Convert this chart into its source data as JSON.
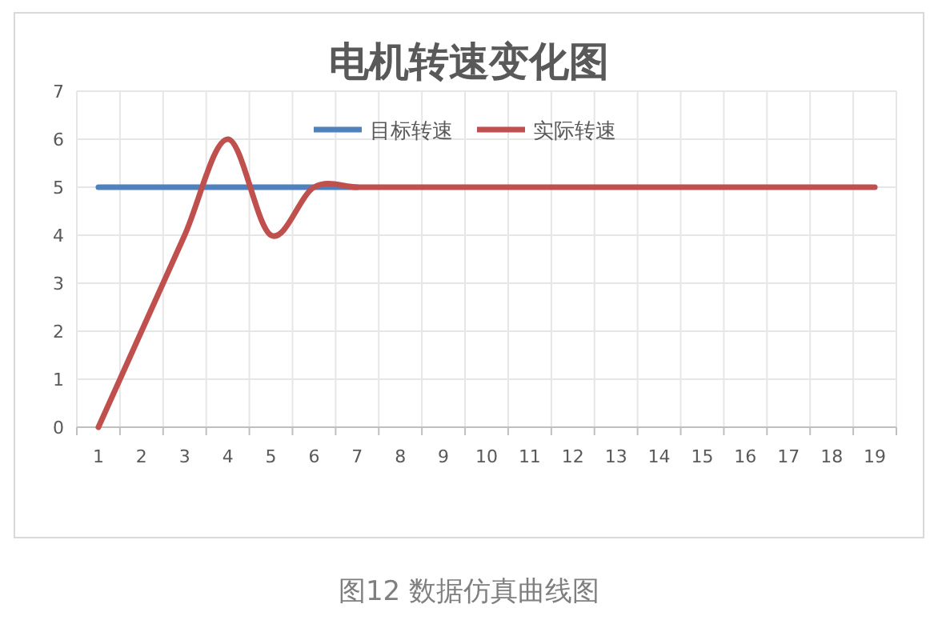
{
  "chart_data": {
    "type": "line",
    "title": "电机转速变化图",
    "categories": [
      "1",
      "2",
      "3",
      "4",
      "5",
      "6",
      "7",
      "8",
      "9",
      "10",
      "11",
      "12",
      "13",
      "14",
      "15",
      "16",
      "17",
      "18",
      "19"
    ],
    "series": [
      {
        "name": "目标转速",
        "color": "#4f81bd",
        "values": [
          5,
          5,
          5,
          5,
          5,
          5,
          5,
          null,
          null,
          null,
          null,
          null,
          null,
          null,
          null,
          null,
          null,
          null,
          null
        ]
      },
      {
        "name": "实际转速",
        "color": "#c0504d",
        "values": [
          0,
          2,
          4,
          6,
          4,
          5,
          5,
          5,
          5,
          5,
          5,
          5,
          5,
          5,
          5,
          5,
          5,
          5,
          5
        ]
      }
    ],
    "ylim": [
      0,
      7
    ],
    "yticks": [
      0,
      1,
      2,
      3,
      4,
      5,
      6,
      7
    ],
    "grid": true,
    "legend": "top",
    "marker": "none",
    "line_style": "solid",
    "annotations": [
      "图12 数据仿真曲线图"
    ]
  }
}
